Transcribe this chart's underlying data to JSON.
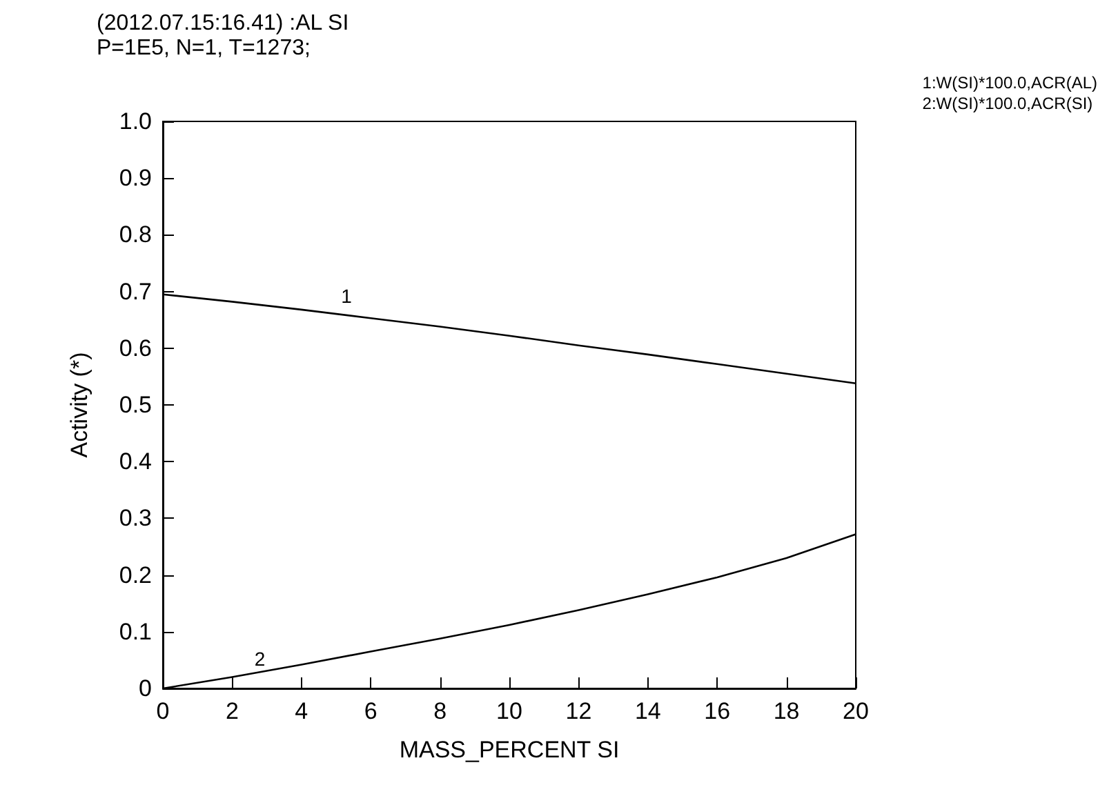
{
  "chart_data": {
    "type": "line",
    "title": "(2012.07.15:16.41) :AL SI",
    "subtitle": "P=1E5, N=1, T=1273;",
    "xlabel": "MASS_PERCENT SI",
    "ylabel": "Activity (*)",
    "x": [
      0,
      2,
      4,
      6,
      8,
      10,
      12,
      14,
      16,
      18,
      20
    ],
    "series": [
      {
        "name": "1:W(SI)*100.0,ACR(AL)",
        "color": "#000000",
        "values": [
          0.695,
          0.682,
          0.668,
          0.653,
          0.638,
          0.622,
          0.605,
          0.589,
          0.572,
          0.555,
          0.538
        ]
      },
      {
        "name": "2:W(SI)*100.0,ACR(SI)",
        "color": "#000000",
        "values": [
          0,
          0.02,
          0.042,
          0.065,
          0.088,
          0.112,
          0.138,
          0.166,
          0.196,
          0.23,
          0.272
        ]
      }
    ],
    "annotations": [
      {
        "text": "1",
        "x": 5.3,
        "y": 0.665
      },
      {
        "text": "2",
        "x": 2.8,
        "y": 0.025
      }
    ],
    "xlim": [
      0,
      20
    ],
    "xticks": [
      0,
      2,
      4,
      6,
      8,
      10,
      12,
      14,
      16,
      18,
      20
    ],
    "ylim": [
      0,
      1
    ],
    "yticks": [
      0,
      0.1,
      0.2,
      0.3,
      0.4,
      0.5,
      0.6,
      0.7,
      0.8,
      0.9,
      {
        "value": 1,
        "label": "1.0"
      }
    ],
    "grid": false,
    "legend": "top right",
    "marker": "none",
    "line_style": "solid"
  }
}
